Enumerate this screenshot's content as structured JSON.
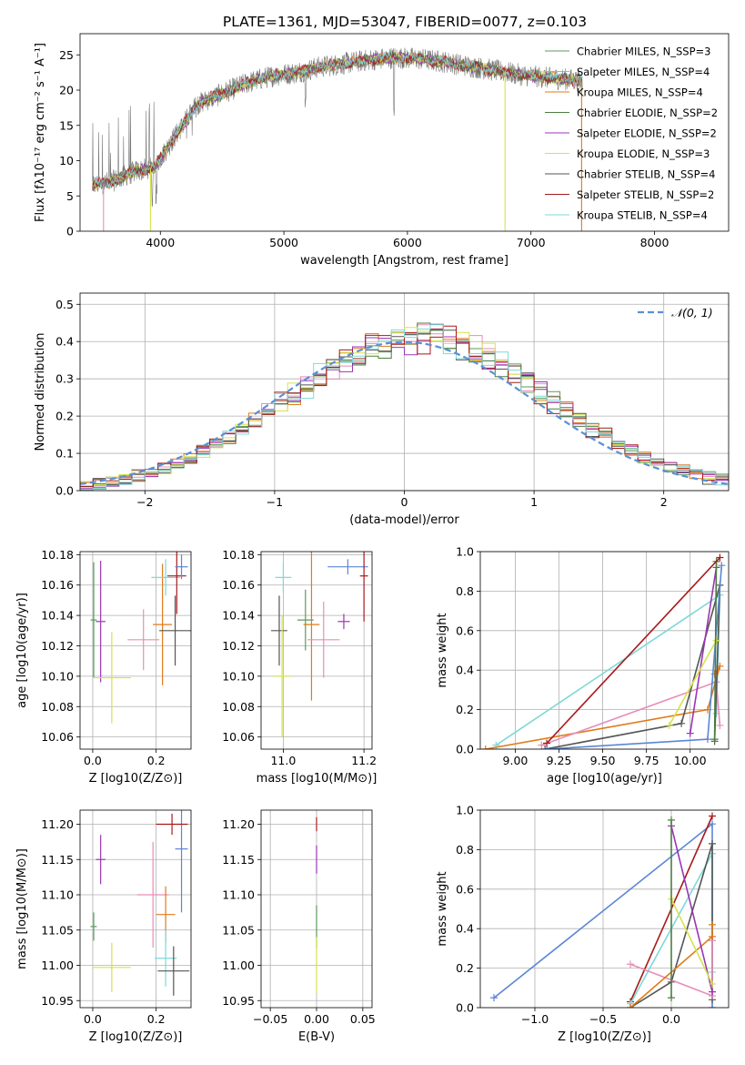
{
  "page_title": "PLATE=1361, MJD=53047, FIBERID=0077, z=0.103",
  "colors": {
    "chabrier_miles": "#5b9a5b",
    "salpeter_miles": "#e58fb8",
    "kroupa_miles": "#e07b1a",
    "chabrier_elodie": "#4a7f3f",
    "salpeter_elodie": "#9b35b5",
    "kroupa_elodie": "#d6e34a",
    "chabrier_stelib": "#555555",
    "salpeter_stelib": "#a81a1a",
    "kroupa_stelib": "#7fd8d8",
    "extra_blue": "#5b86d6",
    "gaussian": "#5b8fd6"
  },
  "chart_data": [
    {
      "type": "line",
      "title": "PLATE=1361, MJD=53047, FIBERID=0077, z=0.103",
      "xlabel": "wavelength [Angstrom, rest frame]",
      "ylabel": "Flux [fλ10⁻¹⁷ erg cm⁻² s⁻¹ A⁻¹]",
      "xlim": [
        3350,
        8600
      ],
      "ylim": [
        0,
        28
      ],
      "xticks": [
        4000,
        5000,
        6000,
        7000,
        8000
      ],
      "yticks": [
        0,
        5,
        10,
        15,
        20,
        25
      ],
      "grid": false,
      "legend": "top-right",
      "series_names": [
        "Chabrier MILES, N_SSP=3",
        "Salpeter MILES, N_SSP=4",
        "Kroupa MILES, N_SSP=4",
        "Chabrier ELODIE, N_SSP=2",
        "Salpeter ELODIE, N_SSP=2",
        "Kroupa ELODIE, N_SSP=3",
        "Chabrier STELIB, N_SSP=4",
        "Salpeter STELIB, N_SSP=2",
        "Kroupa STELIB, N_SSP=4"
      ],
      "series_color_keys": [
        "chabrier_miles",
        "salpeter_miles",
        "kroupa_miles",
        "chabrier_elodie",
        "salpeter_elodie",
        "kroupa_elodie",
        "chabrier_stelib",
        "salpeter_stelib",
        "kroupa_stelib"
      ],
      "continuum_x": [
        3450,
        3600,
        3800,
        3950,
        4100,
        4300,
        4500,
        4700,
        4900,
        5100,
        5300,
        5500,
        5700,
        5900,
        6100,
        6300,
        6500,
        6700,
        6900,
        7100,
        7300,
        7400
      ],
      "continuum_y": [
        6.5,
        7,
        8.5,
        9,
        13,
        18,
        19.5,
        21,
        22,
        22.5,
        23.3,
        23.8,
        24.3,
        24.6,
        24.4,
        24,
        23.4,
        22.8,
        22.2,
        21.8,
        21.5,
        21.3
      ],
      "model_cutoffs": [
        [
          3540,
          "salpeter_miles"
        ],
        [
          3920,
          "kroupa_elodie"
        ],
        [
          6790,
          "kroupa_elodie"
        ],
        [
          7410,
          "kroupa_miles"
        ]
      ]
    },
    {
      "type": "step",
      "xlabel": "(data-model)/error",
      "ylabel": "Normed distribution",
      "xlim": [
        -2.5,
        2.5
      ],
      "ylim": [
        0,
        0.53
      ],
      "xticks": [
        -2,
        -1,
        0,
        1,
        2
      ],
      "yticks": [
        0.0,
        0.1,
        0.2,
        0.3,
        0.4,
        0.5
      ],
      "grid": true,
      "legend": "top-right",
      "legend_label": "𝒩(0, 1)",
      "bin_width": 0.1
    },
    {
      "type": "errorbar",
      "xlabel": "Z [log10(Z/Z⊙)]",
      "ylabel": "age [log10(age/yr)]",
      "xlim": [
        -0.04,
        0.31
      ],
      "ylim": [
        10.052,
        10.182
      ],
      "xticks": [
        0.0,
        0.2
      ],
      "yticks": [
        10.06,
        10.08,
        10.1,
        10.12,
        10.14,
        10.16,
        10.18
      ],
      "grid": true,
      "points": [
        {
          "c": "chabrier_miles",
          "x": 0.003,
          "y": 10.137,
          "xerr": 0.01,
          "yerr": 0.038
        },
        {
          "c": "salpeter_elodie",
          "x": 0.025,
          "y": 10.136,
          "xerr": 0.015,
          "yerr": 0.04
        },
        {
          "c": "kroupa_elodie",
          "x": 0.06,
          "y": 10.099,
          "xerr": 0.06,
          "yerr": 0.03
        },
        {
          "c": "salpeter_miles",
          "x": 0.16,
          "y": 10.124,
          "xerr": 0.05,
          "yerr": 0.02
        },
        {
          "c": "kroupa_miles",
          "x": 0.22,
          "y": 10.134,
          "xerr": 0.03,
          "yerr": 0.04
        },
        {
          "c": "chabrier_stelib",
          "x": 0.26,
          "y": 10.13,
          "xerr": 0.05,
          "yerr": 0.023
        },
        {
          "c": "kroupa_stelib",
          "x": 0.23,
          "y": 10.165,
          "xerr": 0.045,
          "yerr": 0.012
        },
        {
          "c": "salpeter_stelib",
          "x": 0.265,
          "y": 10.166,
          "xerr": 0.03,
          "yerr": 0.025
        },
        {
          "c": "extra_blue",
          "x": 0.28,
          "y": 10.172,
          "xerr": 0.02,
          "yerr": 0.008
        }
      ]
    },
    {
      "type": "errorbar",
      "xlabel": "mass [log10(M/M⊙)]",
      "xlim": [
        10.945,
        11.22
      ],
      "ylim": [
        10.052,
        10.182
      ],
      "xticks": [
        11.0,
        11.2
      ],
      "yticks": [
        10.06,
        10.08,
        10.1,
        10.12,
        10.14,
        10.16,
        10.18
      ],
      "grid": true,
      "points": [
        {
          "c": "chabrier_stelib",
          "x": 10.99,
          "y": 10.13,
          "xerr": 0.02,
          "yerr": 0.023
        },
        {
          "c": "kroupa_elodie",
          "x": 10.997,
          "y": 10.1,
          "xerr": 0.02,
          "yerr": 0.04
        },
        {
          "c": "kroupa_stelib",
          "x": 11.0,
          "y": 10.165,
          "xerr": 0.02,
          "yerr": 0.01
        },
        {
          "c": "chabrier_miles",
          "x": 11.055,
          "y": 10.137,
          "xerr": 0.02,
          "yerr": 0.02
        },
        {
          "c": "kroupa_miles",
          "x": 11.07,
          "y": 10.134,
          "xerr": 0.02,
          "yerr": 0.05
        },
        {
          "c": "salpeter_miles",
          "x": 11.1,
          "y": 10.124,
          "xerr": 0.04,
          "yerr": 0.025
        },
        {
          "c": "salpeter_elodie",
          "x": 11.15,
          "y": 10.136,
          "xerr": 0.015,
          "yerr": 0.005
        },
        {
          "c": "extra_blue",
          "x": 11.16,
          "y": 10.172,
          "xerr": 0.05,
          "yerr": 0.005
        },
        {
          "c": "salpeter_stelib",
          "x": 11.2,
          "y": 10.166,
          "xerr": 0.01,
          "yerr": 0.03
        }
      ]
    },
    {
      "type": "line",
      "xlabel": "age [log10(age/yr)]",
      "ylabel": "mass weight",
      "xlim": [
        8.8,
        10.22
      ],
      "ylim": [
        0,
        1.0
      ],
      "xticks": [
        9.0,
        9.25,
        9.5,
        9.75,
        10.0
      ],
      "yticks": [
        0.0,
        0.2,
        0.4,
        0.6,
        0.8,
        1.0
      ],
      "grid": true,
      "series": [
        {
          "c": "kroupa_stelib",
          "x": [
            8.89,
            10.17,
            10.15
          ],
          "y": [
            0.02,
            0.78,
            0.18
          ]
        },
        {
          "c": "kroupa_miles",
          "x": [
            8.83,
            10.1,
            10.17,
            10.14
          ],
          "y": [
            0.0,
            0.2,
            0.42,
            0.38
          ]
        },
        {
          "c": "salpeter_miles",
          "x": [
            9.15,
            10.15,
            10.17
          ],
          "y": [
            0.02,
            0.34,
            0.12
          ]
        },
        {
          "c": "chabrier_stelib",
          "x": [
            9.17,
            9.95,
            10.17,
            10.14
          ],
          "y": [
            0.0,
            0.13,
            0.83,
            0.04
          ]
        },
        {
          "c": "extra_blue",
          "x": [
            9.18,
            10.1,
            10.18
          ],
          "y": [
            0.0,
            0.05,
            0.93
          ]
        },
        {
          "c": "salpeter_elodie",
          "x": [
            10.0,
            10.15
          ],
          "y": [
            0.08,
            0.92
          ]
        },
        {
          "c": "kroupa_elodie",
          "x": [
            9.88,
            10.15
          ],
          "y": [
            0.12,
            0.55
          ]
        },
        {
          "c": "chabrier_elodie",
          "x": [
            10.14,
            10.15
          ],
          "y": [
            0.05,
            0.95
          ]
        },
        {
          "c": "salpeter_stelib",
          "x": [
            9.18,
            10.17
          ],
          "y": [
            0.03,
            0.97
          ]
        }
      ]
    },
    {
      "type": "errorbar",
      "xlabel": "Z [log10(Z/Z⊙)]",
      "ylabel": "mass [log10(M/M⊙)]",
      "xlim": [
        -0.04,
        0.31
      ],
      "ylim": [
        10.94,
        11.22
      ],
      "xticks": [
        0.0,
        0.2
      ],
      "yticks": [
        10.95,
        11.0,
        11.05,
        11.1,
        11.15,
        11.2
      ],
      "grid": true,
      "points": [
        {
          "c": "chabrier_miles",
          "x": 0.003,
          "y": 11.055,
          "xerr": 0.01,
          "yerr": 0.02
        },
        {
          "c": "kroupa_elodie",
          "x": 0.06,
          "y": 10.997,
          "xerr": 0.06,
          "yerr": 0.035
        },
        {
          "c": "salpeter_elodie",
          "x": 0.025,
          "y": 11.15,
          "xerr": 0.015,
          "yerr": 0.035
        },
        {
          "c": "salpeter_miles",
          "x": 0.19,
          "y": 11.1,
          "xerr": 0.05,
          "yerr": 0.075
        },
        {
          "c": "kroupa_miles",
          "x": 0.23,
          "y": 11.072,
          "xerr": 0.03,
          "yerr": 0.04
        },
        {
          "c": "kroupa_stelib",
          "x": 0.23,
          "y": 11.01,
          "xerr": 0.035,
          "yerr": 0.04
        },
        {
          "c": "chabrier_stelib",
          "x": 0.255,
          "y": 10.992,
          "xerr": 0.05,
          "yerr": 0.035
        },
        {
          "c": "extra_blue",
          "x": 0.28,
          "y": 11.165,
          "xerr": 0.02,
          "yerr": 0.09
        },
        {
          "c": "salpeter_stelib",
          "x": 0.25,
          "y": 11.2,
          "xerr": 0.05,
          "yerr": 0.015
        }
      ]
    },
    {
      "type": "errorbar",
      "xlabel": "E(B-V)",
      "xlim": [
        -0.06,
        0.06
      ],
      "ylim": [
        10.94,
        11.22
      ],
      "xticks": [
        -0.05,
        0.0,
        0.05
      ],
      "yticks": [
        10.95,
        11.0,
        11.05,
        11.1,
        11.15,
        11.2
      ],
      "grid": true,
      "points": [
        {
          "c": "salpeter_stelib",
          "x": 0.0,
          "y": 11.2,
          "xerr": 0,
          "yerr": 0.01
        },
        {
          "c": "salpeter_elodie",
          "x": 0.0,
          "y": 11.15,
          "xerr": 0,
          "yerr": 0.02
        },
        {
          "c": "chabrier_miles",
          "x": 0.0,
          "y": 11.055,
          "xerr": 0,
          "yerr": 0.03
        },
        {
          "c": "kroupa_elodie",
          "x": 0.0,
          "y": 11.0,
          "xerr": 0,
          "yerr": 0.04
        }
      ]
    },
    {
      "type": "line",
      "xlabel": "Z [log10(Z/Z⊙)]",
      "ylabel": "mass weight",
      "xlim": [
        -1.4,
        0.42
      ],
      "ylim": [
        0,
        1.0
      ],
      "xticks": [
        -1.0,
        -0.5,
        0.0
      ],
      "yticks": [
        0.0,
        0.2,
        0.4,
        0.6,
        0.8,
        1.0
      ],
      "grid": true,
      "series": [
        {
          "c": "extra_blue",
          "x": [
            -1.3,
            0.3,
            0.3
          ],
          "y": [
            0.05,
            0.93,
            0.0
          ]
        },
        {
          "c": "salpeter_stelib",
          "x": [
            -0.3,
            0.3
          ],
          "y": [
            0.03,
            0.97
          ]
        },
        {
          "c": "kroupa_stelib",
          "x": [
            -0.3,
            0.3,
            0.3
          ],
          "y": [
            0.02,
            0.78,
            0.18
          ]
        },
        {
          "c": "chabrier_stelib",
          "x": [
            -0.3,
            0.0,
            0.3,
            0.3
          ],
          "y": [
            0.0,
            0.13,
            0.83,
            0.04
          ]
        },
        {
          "c": "salpeter_miles",
          "x": [
            -0.3,
            0.3,
            0.3
          ],
          "y": [
            0.22,
            0.06,
            0.34
          ]
        },
        {
          "c": "kroupa_miles",
          "x": [
            -0.3,
            0.3,
            0.3
          ],
          "y": [
            0.0,
            0.36,
            0.42
          ]
        },
        {
          "c": "salpeter_elodie",
          "x": [
            0.0,
            0.3
          ],
          "y": [
            0.92,
            0.08
          ]
        },
        {
          "c": "kroupa_elodie",
          "x": [
            0.0,
            0.3
          ],
          "y": [
            0.55,
            0.12
          ]
        },
        {
          "c": "chabrier_elodie",
          "x": [
            0.0,
            0.0
          ],
          "y": [
            0.05,
            0.95
          ]
        }
      ]
    }
  ]
}
